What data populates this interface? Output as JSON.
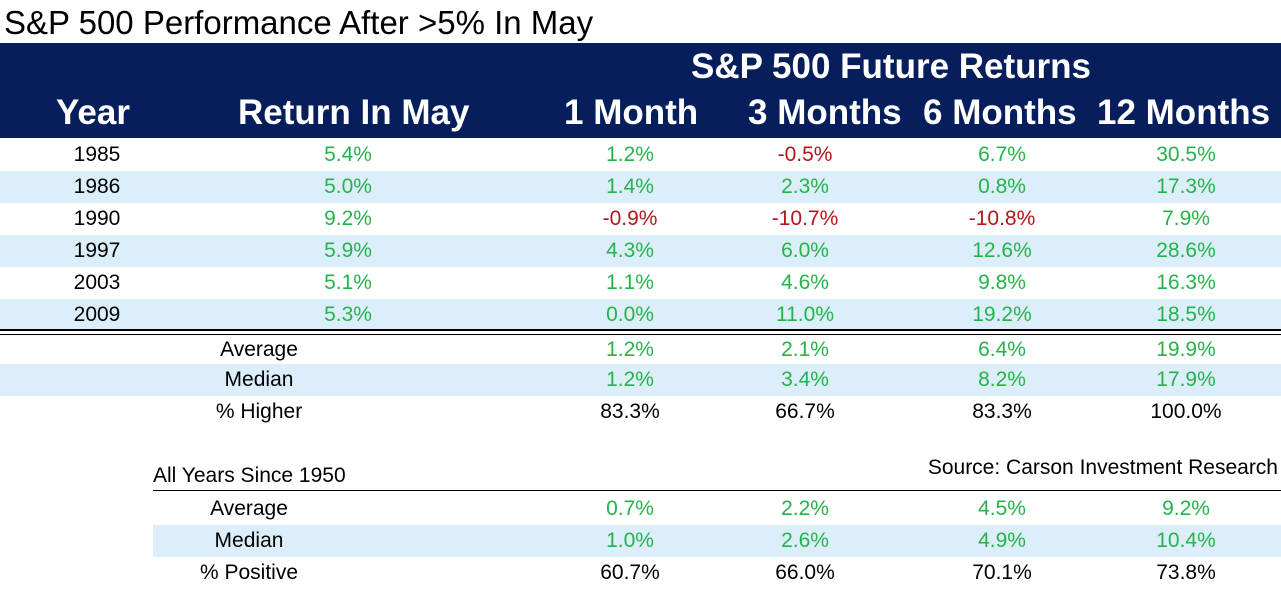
{
  "title": "S&P 500 Performance After >5% In May",
  "header": {
    "supertitle": "S&P 500 Future Returns",
    "columns": [
      "Year",
      "Return In May",
      "1 Month",
      "3 Months",
      "6 Months",
      "12 Months"
    ]
  },
  "source": "Source: Carson Investment Research",
  "chart_data": {
    "type": "table",
    "title": "S&P 500 Performance After >5% In May",
    "columns": [
      "Year",
      "Return In May",
      "1 Month",
      "3 Months",
      "6 Months",
      "12 Months"
    ],
    "rows": [
      {
        "year": "1985",
        "values": [
          "5.4%",
          "1.2%",
          "-0.5%",
          "6.7%",
          "30.5%"
        ]
      },
      {
        "year": "1986",
        "values": [
          "5.0%",
          "1.4%",
          "2.3%",
          "0.8%",
          "17.3%"
        ]
      },
      {
        "year": "1990",
        "values": [
          "9.2%",
          "-0.9%",
          "-10.7%",
          "-10.8%",
          "7.9%"
        ]
      },
      {
        "year": "1997",
        "values": [
          "5.9%",
          "4.3%",
          "6.0%",
          "12.6%",
          "28.6%"
        ]
      },
      {
        "year": "2003",
        "values": [
          "5.1%",
          "1.1%",
          "4.6%",
          "9.8%",
          "16.3%"
        ]
      },
      {
        "year": "2009",
        "values": [
          "5.3%",
          "0.0%",
          "11.0%",
          "19.2%",
          "18.5%"
        ]
      }
    ],
    "summary": [
      {
        "label": "Average",
        "values": [
          "1.2%",
          "2.1%",
          "6.4%",
          "19.9%"
        ]
      },
      {
        "label": "Median",
        "values": [
          "1.2%",
          "3.4%",
          "8.2%",
          "17.9%"
        ]
      },
      {
        "label": "% Higher",
        "values": [
          "83.3%",
          "66.7%",
          "83.3%",
          "100.0%"
        ]
      }
    ],
    "all_years": {
      "label": "All Years Since 1950",
      "rows": [
        {
          "label": "Average",
          "values": [
            "0.7%",
            "2.2%",
            "4.5%",
            "9.2%"
          ]
        },
        {
          "label": "Median",
          "values": [
            "1.0%",
            "2.6%",
            "4.9%",
            "10.4%"
          ]
        },
        {
          "label": "% Positive",
          "values": [
            "60.7%",
            "66.0%",
            "70.1%",
            "73.8%"
          ]
        }
      ]
    }
  },
  "colors": {
    "header_bg": "#061f5c",
    "band": "#dbeefa",
    "positive": "#25b34a",
    "negative": "#b4151a"
  }
}
